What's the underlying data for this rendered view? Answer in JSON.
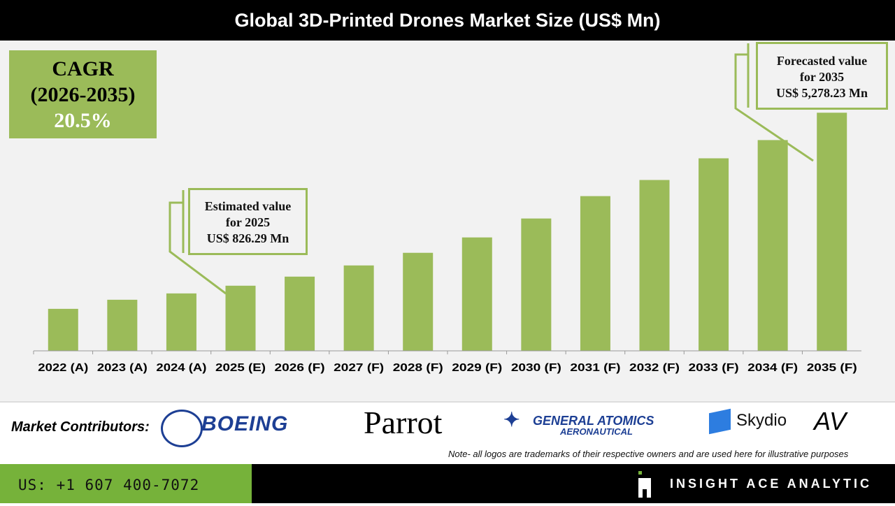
{
  "header": {
    "title": "Global 3D-Printed Drones Market Size (US$ Mn)"
  },
  "cagr": {
    "label": "CAGR",
    "period": "(2026-2035)",
    "value": "20.5%"
  },
  "callouts": {
    "estimated": {
      "line1": "Estimated value",
      "line2": "for 2025",
      "line3": "US$ 826.29 Mn"
    },
    "forecast": {
      "line1": "Forecasted value",
      "line2": "for 2035",
      "line3": "US$ 5,278.23 Mn"
    }
  },
  "chart_data": {
    "type": "bar",
    "title": "Global 3D-Printed Drones Market Size (US$ Mn)",
    "categories": [
      "2022 (A)",
      "2023 (A)",
      "2024 (A)",
      "2025 (E)",
      "2026 (F)",
      "2027 (F)",
      "2028 (F)",
      "2029 (F)",
      "2030 (F)",
      "2031 (F)",
      "2032 (F)",
      "2033 (F)",
      "2034 (F)",
      "2035 (F)"
    ],
    "values": [
      231,
      465,
      628,
      826.29,
      1060,
      1348,
      1673,
      2069,
      2556,
      3132,
      3547,
      4105,
      4574,
      5278.23
    ],
    "ylim": [
      -850,
      7100
    ],
    "y_axis_visible": false,
    "grid": false,
    "bar_color": "#9bbb59"
  },
  "contributors": {
    "label": "Market Contributors:",
    "logos": [
      "BOEING",
      "Parrot",
      "GENERAL ATOMICS",
      "AERONAUTICAL",
      "Skydio",
      "AV"
    ],
    "note": "Note- all logos are trademarks of their respective owners and are used here for illustrative purposes"
  },
  "footer": {
    "phone": "US: +1 607 400-7072",
    "brand": "INSIGHT ACE ANALYTIC",
    "accent": "#76b23a"
  }
}
